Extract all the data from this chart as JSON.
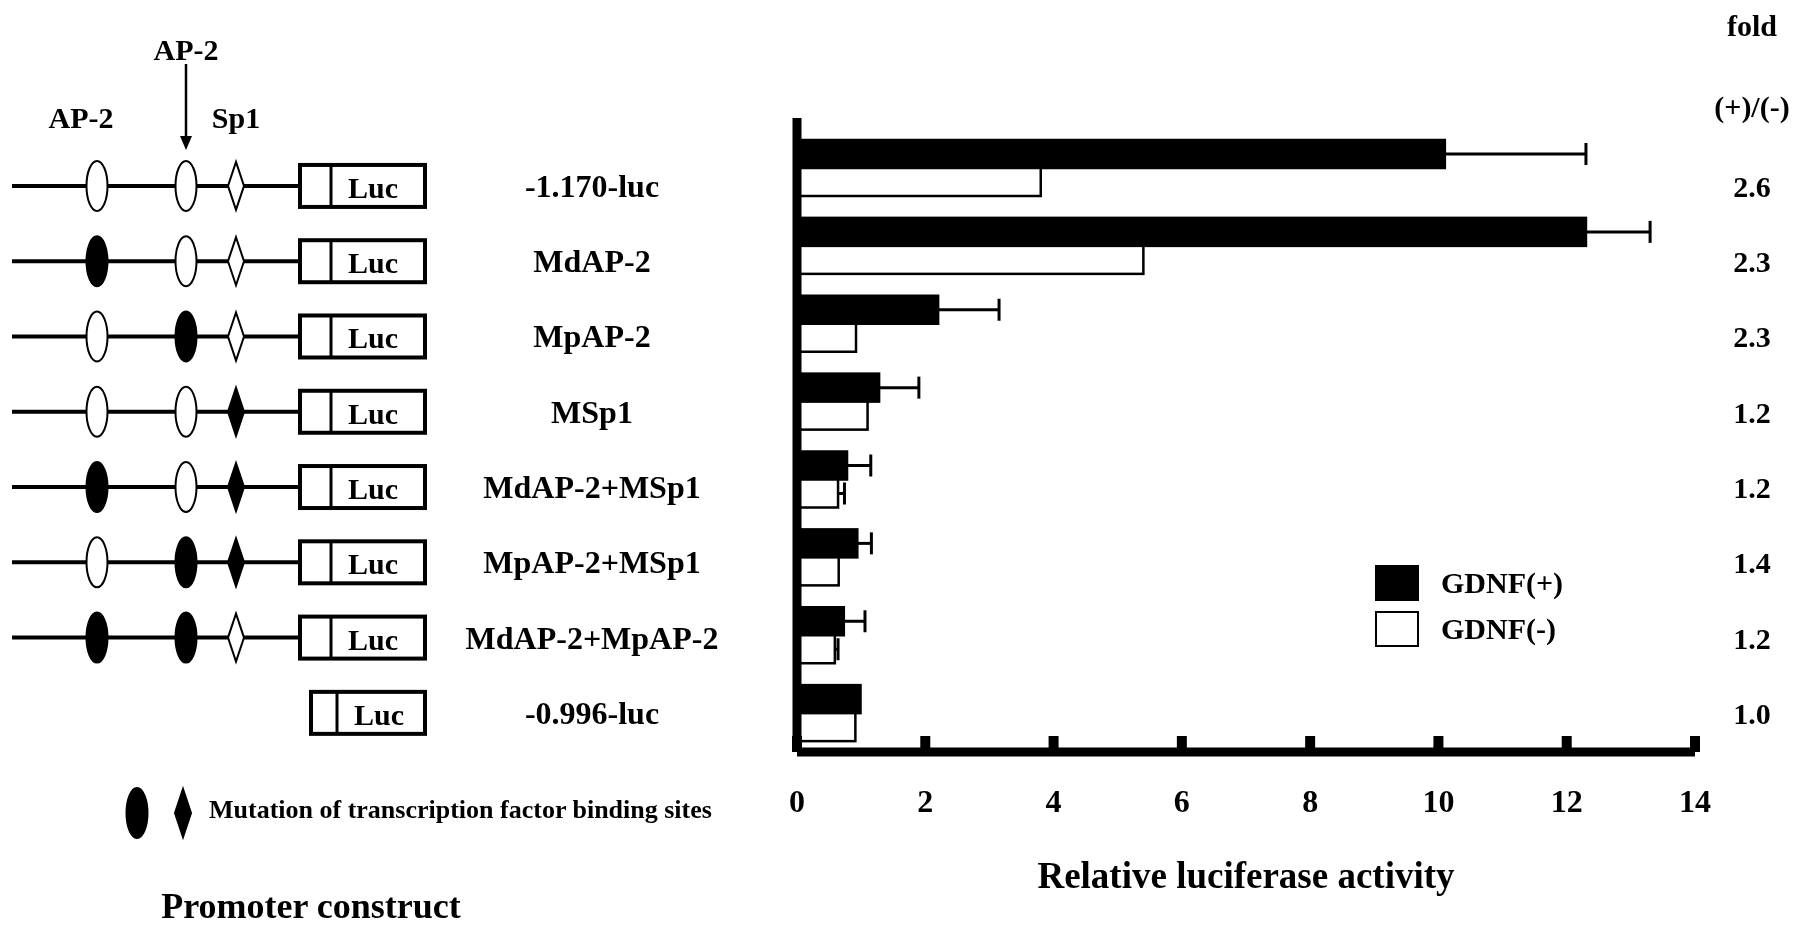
{
  "chart_data": {
    "type": "bar",
    "orientation": "horizontal",
    "categories": [
      "-1.170-luc",
      "MdAP-2",
      "MpAP-2",
      "MSp1",
      "MdAP-2+MSp1",
      "MpAP-2+MSp1",
      "MdAP-2+MpAP-2",
      "-0.996-luc"
    ],
    "series": [
      {
        "name": "GDNF(+)",
        "color": "#000000",
        "values": [
          10.1,
          12.3,
          2.2,
          1.28,
          0.78,
          0.94,
          0.73,
          0.99
        ],
        "errors": [
          [
            10.1,
            12.3
          ],
          [
            12.3,
            13.3
          ],
          [
            2.2,
            3.15
          ],
          [
            1.28,
            1.9
          ],
          [
            0.78,
            1.15
          ],
          [
            0.94,
            1.16
          ],
          [
            0.73,
            1.06
          ],
          null
        ]
      },
      {
        "name": "GDNF(-)",
        "color": "#ffffff",
        "values": [
          3.8,
          5.4,
          0.92,
          1.1,
          0.64,
          0.65,
          0.59,
          0.91
        ],
        "errors": [
          null,
          null,
          null,
          null,
          [
            0.64,
            0.74
          ],
          null,
          [
            0.59,
            0.64
          ],
          null
        ]
      }
    ],
    "xlim": [
      0,
      14
    ],
    "xticks": [
      0,
      2,
      4,
      6,
      8,
      10,
      12,
      14
    ],
    "xlabel": "Relative luciferase activity",
    "legend": "bottom right",
    "grid": false,
    "annotations": [
      "AP-2",
      "AP-2",
      "Sp1",
      "Luc",
      "Luc",
      "Luc",
      "Luc",
      "Luc",
      "Luc",
      "Luc",
      "Luc",
      "Mutation of transcription factor binding sites",
      "Promoter construct",
      "fold",
      "(+)/(-)",
      "2.6",
      "2.3",
      "2.3",
      "1.2",
      "1.2",
      "1.4",
      "1.2",
      "1.0"
    ]
  }
}
